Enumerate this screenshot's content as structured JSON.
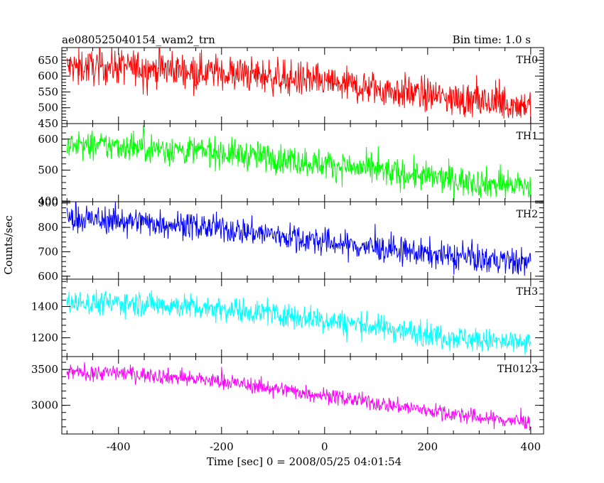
{
  "chart_data": {
    "type": "line",
    "title": "ae080525040154_wam2_trn",
    "subtitle": "Bin time: 1.0 s",
    "xlabel": "Time [sec] 0 = 2008/05/25 04:01:54",
    "ylabel": "Counts/sec",
    "xlim": [
      -510,
      425
    ],
    "x_ticks": [
      -400,
      -200,
      0,
      200,
      400
    ],
    "x_start": -500,
    "x_end": 400,
    "grid": false,
    "legend": "none",
    "panels": [
      {
        "name": "TH0",
        "color": "#ff0000",
        "ylim": [
          450,
          690
        ],
        "y_ticks": [
          450,
          500,
          550,
          600,
          650
        ],
        "trend_x": [
          -500,
          -400,
          -300,
          -200,
          -100,
          0,
          100,
          200,
          300,
          400
        ],
        "trend_y": [
          628,
          630,
          622,
          612,
          598,
          580,
          560,
          540,
          518,
          508
        ],
        "noise_sd": 28
      },
      {
        "name": "TH1",
        "color": "#00ff00",
        "ylim": [
          398,
          650
        ],
        "y_ticks": [
          400,
          500,
          600
        ],
        "trend_x": [
          -500,
          -400,
          -300,
          -200,
          -100,
          0,
          100,
          200,
          300,
          400
        ],
        "trend_y": [
          578,
          578,
          568,
          556,
          540,
          520,
          498,
          478,
          460,
          448
        ],
        "noise_sd": 24
      },
      {
        "name": "TH2",
        "color": "#0000ff",
        "ylim": [
          588,
          905
        ],
        "y_ticks": [
          600,
          700,
          800,
          900
        ],
        "trend_x": [
          -500,
          -400,
          -300,
          -200,
          -100,
          0,
          100,
          200,
          300,
          400
        ],
        "trend_y": [
          832,
          830,
          815,
          795,
          770,
          740,
          715,
          692,
          670,
          655
        ],
        "noise_sd": 28
      },
      {
        "name": "TH3",
        "color": "#00ffff",
        "ylim": [
          1080,
          1575
        ],
        "y_ticks": [
          1200,
          1400
        ],
        "trend_x": [
          -500,
          -400,
          -300,
          -200,
          -100,
          0,
          100,
          200,
          300,
          400
        ],
        "trend_y": [
          1425,
          1425,
          1410,
          1388,
          1355,
          1315,
          1270,
          1225,
          1185,
          1155
        ],
        "noise_sd": 40
      },
      {
        "name": "TH0123",
        "color": "#ff00ff",
        "ylim": [
          2600,
          3680
        ],
        "y_ticks": [
          3000,
          3500
        ],
        "trend_x": [
          -500,
          -400,
          -300,
          -200,
          -100,
          0,
          100,
          200,
          300,
          400
        ],
        "trend_y": [
          3460,
          3455,
          3400,
          3330,
          3240,
          3140,
          3030,
          2930,
          2830,
          2760
        ],
        "noise_sd": 55
      }
    ]
  }
}
